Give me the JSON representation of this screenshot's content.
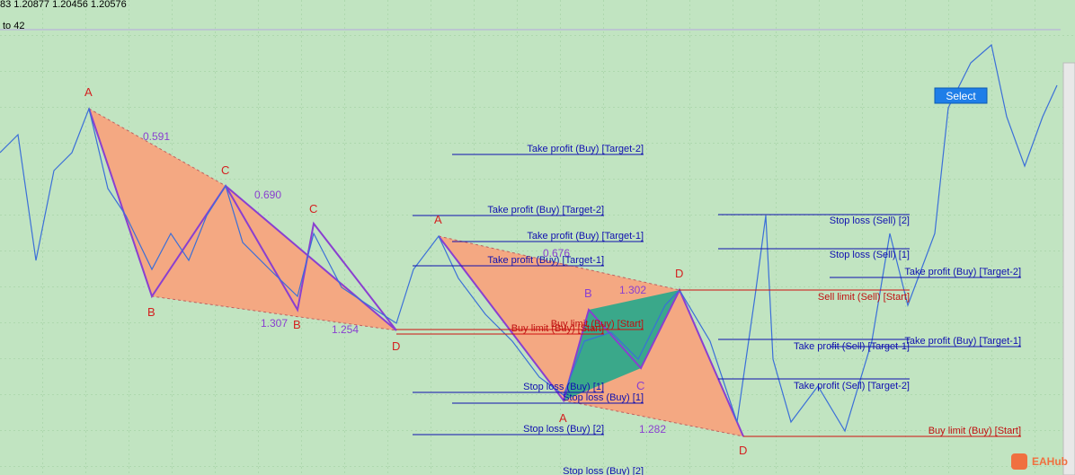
{
  "header": {
    "quote": "83 1.20877 1.20456 1.20576",
    "range": "to 42"
  },
  "pattern_labels": [
    "A",
    "B",
    "C",
    "B",
    "C",
    "D",
    "A",
    "B",
    "C",
    "A",
    "D",
    "D"
  ],
  "ratios": [
    "0.591",
    "0.690",
    "1.307",
    "1.254",
    "0.676",
    "1.302",
    "1.282"
  ],
  "levels": [
    {
      "label": "Take profit (Buy) [Target-2]"
    },
    {
      "label": "Take profit (Buy) [Target-2]"
    },
    {
      "label": "Take profit (Buy) [Target-1]"
    },
    {
      "label": "Take profit (Buy) [Target-1]"
    },
    {
      "label": "Buy limit (Buy) [Start]"
    },
    {
      "label": "Buy limit (Buy) [Start]"
    },
    {
      "label": "Stop loss (Buy) [1]"
    },
    {
      "label": "Stop loss (Buy) [1]"
    },
    {
      "label": "Stop loss (Buy) [2]"
    },
    {
      "label": "Stop loss (Buy) [2]"
    },
    {
      "label": "Stop loss (Sell) [2]"
    },
    {
      "label": "Stop loss (Sell) [1]"
    },
    {
      "label": "Take profit (Buy) [Target-2]"
    },
    {
      "label": "Sell limit (Sell) [Start]"
    },
    {
      "label": "Take profit (Sell) [Target-1]"
    },
    {
      "label": "Take profit (Buy) [Target-1]"
    },
    {
      "label": "Take profit (Sell) [Target-2]"
    },
    {
      "label": "Buy limit (Buy) [Start]"
    }
  ],
  "button": "Select",
  "watermark": "EAHub"
}
